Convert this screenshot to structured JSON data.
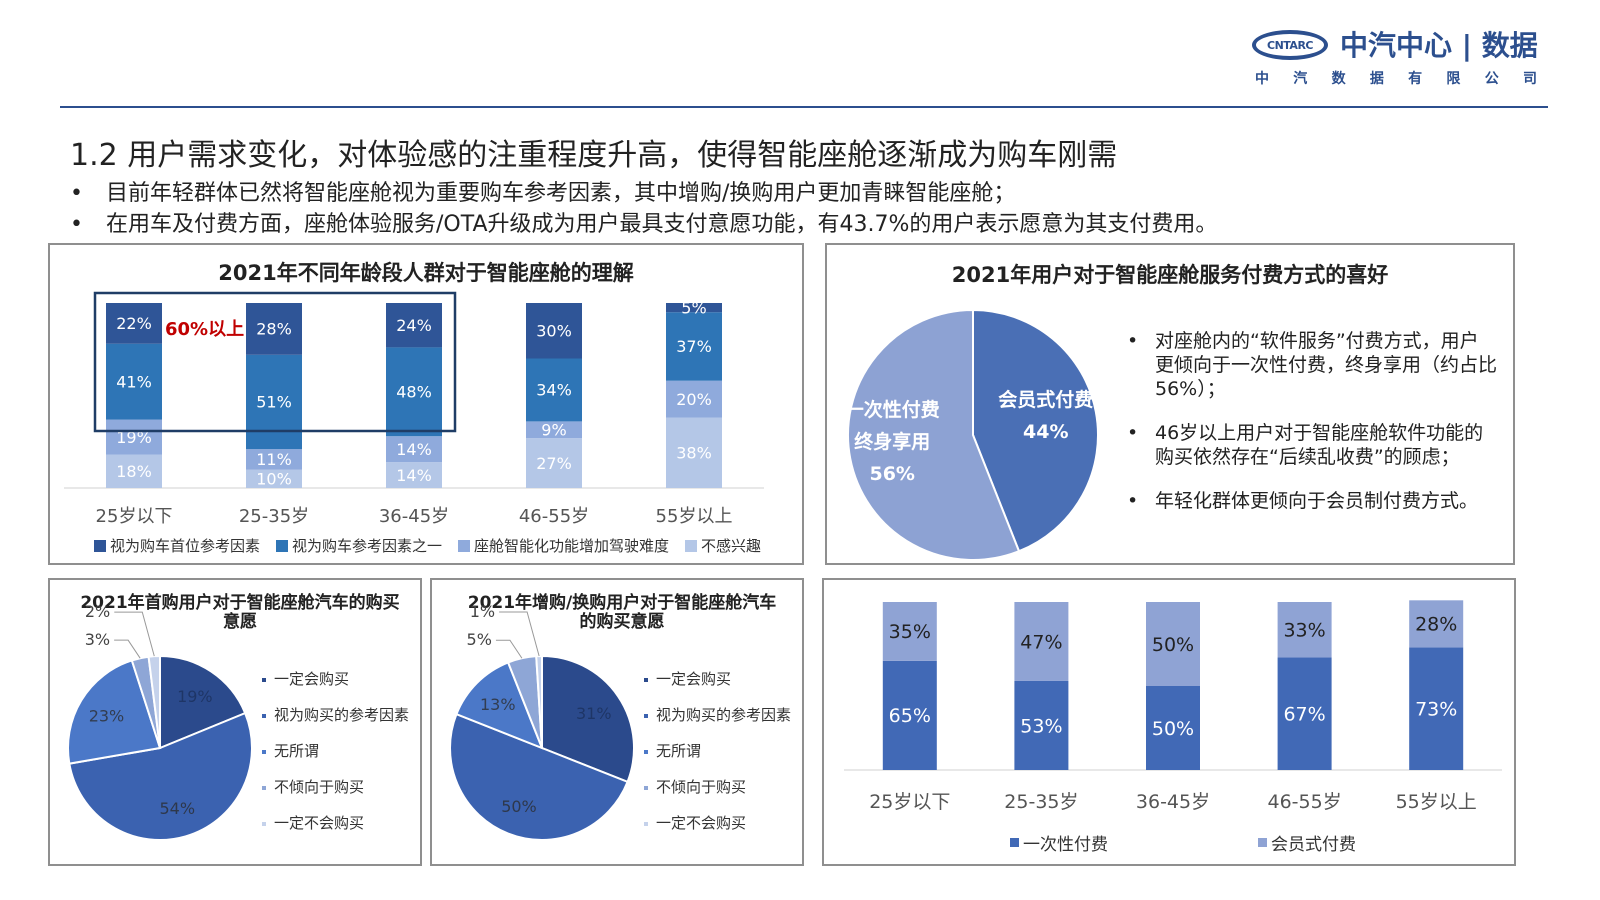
{
  "logo": {
    "badge": "CNTARC",
    "main": "中汽中心 | 数据",
    "sub_chars": [
      "中",
      "汽",
      "数",
      "据",
      "有",
      "限",
      "公",
      "司"
    ]
  },
  "heading": "1.2 用户需求变化，对体验感的注重程度升高，使得智能座舱逐渐成为购车刚需",
  "bullets": [
    "目前年轻群体已然将智能座舱视为重要购车参考因素，其中增购/换购用户更加青睐智能座舱；",
    "在用车及付费方面，座舱体验服务/OTA升级成为用户最具支付意愿功能，有43.7%的用户表示愿意为其支付费用。"
  ],
  "notes": [
    "对座舱内的“软件服务”付费方式，用户更倾向于一次性付费，终身享用（约占比56%）；",
    "46岁以上用户对于智能座舱软件功能的购买依然存在“后续乱收费”的顾虑；",
    "年轻化群体更倾向于会员制付费方式。"
  ],
  "chart_data": [
    {
      "type": "bar",
      "stacked": true,
      "title": "2021年不同年龄段人群对于智能座舱的理解",
      "categories": [
        "25岁以下",
        "25-35岁",
        "36-45岁",
        "46-55岁",
        "55岁以上"
      ],
      "series": [
        {
          "name": "视为购车首位参考因素",
          "color": "#2f5597",
          "values": [
            22,
            28,
            24,
            30,
            5
          ]
        },
        {
          "name": "视为购车参考因素之一",
          "color": "#2e75b6",
          "values": [
            41,
            51,
            48,
            34,
            37
          ]
        },
        {
          "name": "座舱智能化功能增加驾驶难度",
          "color": "#8faadc",
          "values": [
            19,
            11,
            14,
            9,
            20
          ]
        },
        {
          "name": "不感兴趣",
          "color": "#b4c7e7",
          "values": [
            18,
            10,
            14,
            27,
            38
          ]
        }
      ],
      "data_labels": [
        "22%",
        "28%",
        "24%",
        "30%",
        "5%",
        "41%",
        "51%",
        "48%",
        "34%",
        "37%",
        "19%",
        "11%",
        "14%",
        "9%",
        "20%",
        "18%",
        "10%",
        "14%",
        "27%",
        "38%"
      ],
      "annotation": "60%以上",
      "legend_position": "bottom"
    },
    {
      "type": "pie",
      "title": "2021年用户对于智能座舱服务付费方式的喜好",
      "slices": [
        {
          "label": "会员式付费",
          "value": 44,
          "display": "44%",
          "color": "#4a6fb5"
        },
        {
          "label": "一次性付费 终身享用",
          "label_lines": [
            "一次性付费",
            "终身享用"
          ],
          "value": 56,
          "display": "56%",
          "color": "#8da2d3"
        }
      ]
    },
    {
      "type": "pie",
      "title": "2021年首购用户对于智能座舱汽车的购买意愿",
      "slices": [
        {
          "label": "一定会购买",
          "value": 19,
          "display": "19%",
          "color": "#2b4a8c"
        },
        {
          "label": "视为购买的参考因素",
          "value": 54,
          "display": "54%",
          "color": "#3b62b0"
        },
        {
          "label": "无所谓",
          "value": 23,
          "display": "23%",
          "color": "#4b78c8"
        },
        {
          "label": "不倾向于购买",
          "value": 3,
          "display": "3%",
          "color": "#8ea6d6"
        },
        {
          "label": "一定不会购买",
          "value": 2,
          "display": "2%",
          "color": "#c5d2eb"
        }
      ],
      "legend_position": "right"
    },
    {
      "type": "pie",
      "title": "2021年增购/换购用户对于智能座舱汽车的购买意愿",
      "slices": [
        {
          "label": "一定会购买",
          "value": 31,
          "display": "31%",
          "color": "#2b4a8c"
        },
        {
          "label": "视为购买的参考因素",
          "value": 50,
          "display": "50%",
          "color": "#3b62b0"
        },
        {
          "label": "无所谓",
          "value": 13,
          "display": "13%",
          "color": "#4b78c8"
        },
        {
          "label": "不倾向于购买",
          "value": 5,
          "display": "5%",
          "color": "#8ea6d6"
        },
        {
          "label": "一定不会购买",
          "value": 1,
          "display": "1%",
          "color": "#c5d2eb"
        }
      ],
      "legend_position": "right"
    },
    {
      "type": "bar",
      "stacked": true,
      "categories": [
        "25岁以下",
        "25-35岁",
        "36-45岁",
        "46-55岁",
        "55岁以上"
      ],
      "series": [
        {
          "name": "一次性付费",
          "color": "#4169b6",
          "values": [
            65,
            53,
            50,
            67,
            73
          ]
        },
        {
          "name": "会员式付费",
          "color": "#8fa3d4",
          "values": [
            35,
            47,
            50,
            33,
            28
          ]
        }
      ],
      "data_labels": [
        "65%",
        "53%",
        "50%",
        "67%",
        "73%",
        "35%",
        "47%",
        "50%",
        "33%",
        "28%"
      ],
      "legend_position": "bottom"
    }
  ]
}
